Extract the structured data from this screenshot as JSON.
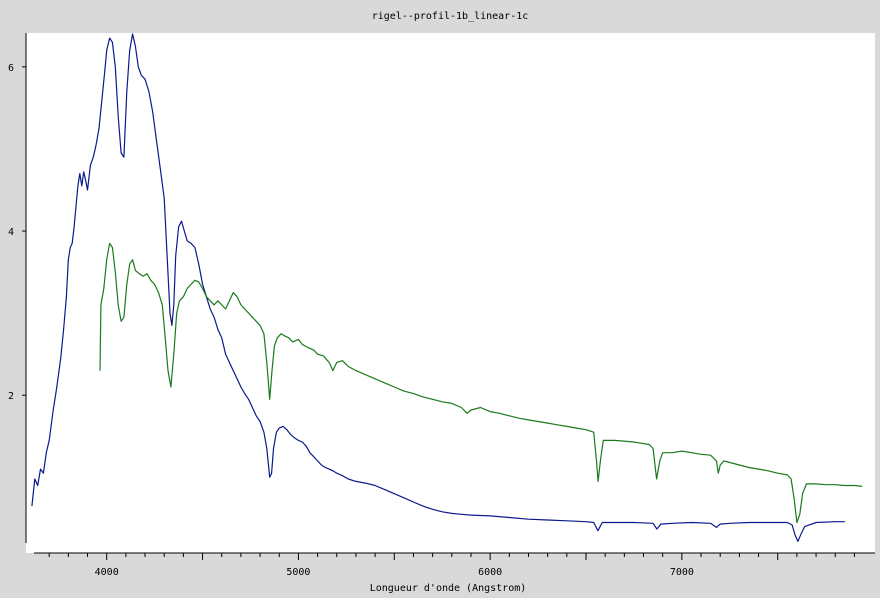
{
  "chart_data": {
    "type": "line",
    "title": "rigel--profil-1b_linear-1c",
    "xlabel": "Longueur d'onde (Angstrom)",
    "ylabel": "",
    "xlim": [
      3600,
      7950
    ],
    "ylim": [
      0.2,
      6.4
    ],
    "x_ticks": [
      4000,
      5000,
      6000,
      7000
    ],
    "x_tick_labels": [
      "4000",
      "5000",
      "6000",
      "7000"
    ],
    "y_ticks": [
      2,
      4,
      6
    ],
    "y_tick_labels": [
      "2",
      "4",
      "6"
    ],
    "grid": false,
    "legend": "none",
    "series": [
      {
        "color": "#0a1a8c",
        "points": [
          [
            3610,
            0.65
          ],
          [
            3625,
            0.98
          ],
          [
            3640,
            0.9
          ],
          [
            3655,
            1.1
          ],
          [
            3670,
            1.05
          ],
          [
            3685,
            1.3
          ],
          [
            3700,
            1.45
          ],
          [
            3720,
            1.8
          ],
          [
            3740,
            2.1
          ],
          [
            3760,
            2.45
          ],
          [
            3775,
            2.8
          ],
          [
            3790,
            3.2
          ],
          [
            3800,
            3.65
          ],
          [
            3810,
            3.8
          ],
          [
            3820,
            3.85
          ],
          [
            3830,
            4.05
          ],
          [
            3840,
            4.3
          ],
          [
            3850,
            4.55
          ],
          [
            3860,
            4.7
          ],
          [
            3870,
            4.55
          ],
          [
            3880,
            4.72
          ],
          [
            3890,
            4.62
          ],
          [
            3900,
            4.5
          ],
          [
            3915,
            4.8
          ],
          [
            3930,
            4.9
          ],
          [
            3945,
            5.05
          ],
          [
            3960,
            5.25
          ],
          [
            3975,
            5.6
          ],
          [
            3990,
            5.95
          ],
          [
            4000,
            6.2
          ],
          [
            4015,
            6.35
          ],
          [
            4030,
            6.3
          ],
          [
            4045,
            6.0
          ],
          [
            4060,
            5.4
          ],
          [
            4075,
            4.95
          ],
          [
            4090,
            4.9
          ],
          [
            4105,
            5.7
          ],
          [
            4120,
            6.2
          ],
          [
            4135,
            6.4
          ],
          [
            4150,
            6.25
          ],
          [
            4165,
            6.0
          ],
          [
            4180,
            5.9
          ],
          [
            4200,
            5.85
          ],
          [
            4220,
            5.7
          ],
          [
            4240,
            5.45
          ],
          [
            4260,
            5.1
          ],
          [
            4280,
            4.75
          ],
          [
            4300,
            4.4
          ],
          [
            4315,
            3.7
          ],
          [
            4330,
            3.0
          ],
          [
            4340,
            2.85
          ],
          [
            4350,
            3.1
          ],
          [
            4360,
            3.7
          ],
          [
            4375,
            4.05
          ],
          [
            4390,
            4.12
          ],
          [
            4405,
            4.0
          ],
          [
            4420,
            3.88
          ],
          [
            4440,
            3.85
          ],
          [
            4460,
            3.8
          ],
          [
            4480,
            3.6
          ],
          [
            4500,
            3.35
          ],
          [
            4520,
            3.2
          ],
          [
            4540,
            3.05
          ],
          [
            4560,
            2.95
          ],
          [
            4580,
            2.8
          ],
          [
            4600,
            2.7
          ],
          [
            4620,
            2.5
          ],
          [
            4640,
            2.4
          ],
          [
            4660,
            2.3
          ],
          [
            4680,
            2.2
          ],
          [
            4700,
            2.1
          ],
          [
            4720,
            2.02
          ],
          [
            4740,
            1.95
          ],
          [
            4760,
            1.85
          ],
          [
            4780,
            1.75
          ],
          [
            4800,
            1.68
          ],
          [
            4820,
            1.55
          ],
          [
            4835,
            1.35
          ],
          [
            4850,
            1.0
          ],
          [
            4860,
            1.05
          ],
          [
            4870,
            1.35
          ],
          [
            4885,
            1.55
          ],
          [
            4900,
            1.6
          ],
          [
            4920,
            1.62
          ],
          [
            4940,
            1.58
          ],
          [
            4960,
            1.52
          ],
          [
            4980,
            1.48
          ],
          [
            5000,
            1.45
          ],
          [
            5020,
            1.43
          ],
          [
            5040,
            1.38
          ],
          [
            5060,
            1.3
          ],
          [
            5080,
            1.25
          ],
          [
            5100,
            1.2
          ],
          [
            5120,
            1.15
          ],
          [
            5140,
            1.12
          ],
          [
            5160,
            1.1
          ],
          [
            5180,
            1.08
          ],
          [
            5200,
            1.05
          ],
          [
            5230,
            1.02
          ],
          [
            5260,
            0.98
          ],
          [
            5300,
            0.95
          ],
          [
            5350,
            0.93
          ],
          [
            5400,
            0.9
          ],
          [
            5450,
            0.85
          ],
          [
            5500,
            0.8
          ],
          [
            5550,
            0.75
          ],
          [
            5600,
            0.7
          ],
          [
            5650,
            0.65
          ],
          [
            5700,
            0.61
          ],
          [
            5750,
            0.58
          ],
          [
            5800,
            0.56
          ],
          [
            5850,
            0.55
          ],
          [
            5900,
            0.54
          ],
          [
            6000,
            0.53
          ],
          [
            6100,
            0.51
          ],
          [
            6200,
            0.49
          ],
          [
            6300,
            0.48
          ],
          [
            6400,
            0.47
          ],
          [
            6500,
            0.46
          ],
          [
            6540,
            0.45
          ],
          [
            6562,
            0.35
          ],
          [
            6585,
            0.45
          ],
          [
            6650,
            0.45
          ],
          [
            6750,
            0.45
          ],
          [
            6850,
            0.44
          ],
          [
            6870,
            0.37
          ],
          [
            6890,
            0.43
          ],
          [
            6950,
            0.44
          ],
          [
            7050,
            0.45
          ],
          [
            7150,
            0.44
          ],
          [
            7180,
            0.39
          ],
          [
            7200,
            0.43
          ],
          [
            7250,
            0.44
          ],
          [
            7350,
            0.45
          ],
          [
            7450,
            0.45
          ],
          [
            7550,
            0.45
          ],
          [
            7575,
            0.42
          ],
          [
            7590,
            0.3
          ],
          [
            7605,
            0.22
          ],
          [
            7620,
            0.3
          ],
          [
            7640,
            0.4
          ],
          [
            7700,
            0.45
          ],
          [
            7800,
            0.46
          ],
          [
            7850,
            0.46
          ]
        ]
      },
      {
        "color": "#1a7a1a",
        "points": [
          [
            3965,
            2.3
          ],
          [
            3970,
            3.1
          ],
          [
            3985,
            3.3
          ],
          [
            4000,
            3.65
          ],
          [
            4015,
            3.85
          ],
          [
            4030,
            3.8
          ],
          [
            4045,
            3.5
          ],
          [
            4060,
            3.1
          ],
          [
            4075,
            2.9
          ],
          [
            4090,
            2.95
          ],
          [
            4105,
            3.35
          ],
          [
            4120,
            3.6
          ],
          [
            4135,
            3.65
          ],
          [
            4150,
            3.52
          ],
          [
            4170,
            3.48
          ],
          [
            4190,
            3.45
          ],
          [
            4210,
            3.48
          ],
          [
            4230,
            3.4
          ],
          [
            4250,
            3.35
          ],
          [
            4270,
            3.25
          ],
          [
            4290,
            3.1
          ],
          [
            4305,
            2.7
          ],
          [
            4320,
            2.3
          ],
          [
            4335,
            2.1
          ],
          [
            4350,
            2.5
          ],
          [
            4365,
            3.0
          ],
          [
            4380,
            3.15
          ],
          [
            4400,
            3.2
          ],
          [
            4420,
            3.3
          ],
          [
            4440,
            3.35
          ],
          [
            4460,
            3.4
          ],
          [
            4480,
            3.38
          ],
          [
            4500,
            3.3
          ],
          [
            4520,
            3.2
          ],
          [
            4540,
            3.15
          ],
          [
            4560,
            3.1
          ],
          [
            4580,
            3.15
          ],
          [
            4600,
            3.1
          ],
          [
            4620,
            3.05
          ],
          [
            4640,
            3.15
          ],
          [
            4660,
            3.25
          ],
          [
            4680,
            3.2
          ],
          [
            4700,
            3.1
          ],
          [
            4720,
            3.05
          ],
          [
            4740,
            3.0
          ],
          [
            4760,
            2.95
          ],
          [
            4780,
            2.9
          ],
          [
            4800,
            2.85
          ],
          [
            4820,
            2.75
          ],
          [
            4835,
            2.4
          ],
          [
            4850,
            1.95
          ],
          [
            4862,
            2.3
          ],
          [
            4875,
            2.6
          ],
          [
            4890,
            2.7
          ],
          [
            4910,
            2.75
          ],
          [
            4930,
            2.72
          ],
          [
            4950,
            2.7
          ],
          [
            4970,
            2.65
          ],
          [
            5000,
            2.68
          ],
          [
            5020,
            2.62
          ],
          [
            5050,
            2.58
          ],
          [
            5080,
            2.55
          ],
          [
            5100,
            2.5
          ],
          [
            5130,
            2.48
          ],
          [
            5160,
            2.4
          ],
          [
            5180,
            2.3
          ],
          [
            5200,
            2.4
          ],
          [
            5230,
            2.42
          ],
          [
            5260,
            2.35
          ],
          [
            5300,
            2.3
          ],
          [
            5350,
            2.25
          ],
          [
            5400,
            2.2
          ],
          [
            5450,
            2.15
          ],
          [
            5500,
            2.1
          ],
          [
            5550,
            2.05
          ],
          [
            5600,
            2.02
          ],
          [
            5650,
            1.98
          ],
          [
            5700,
            1.95
          ],
          [
            5750,
            1.92
          ],
          [
            5800,
            1.9
          ],
          [
            5850,
            1.85
          ],
          [
            5880,
            1.78
          ],
          [
            5900,
            1.82
          ],
          [
            5950,
            1.85
          ],
          [
            6000,
            1.8
          ],
          [
            6050,
            1.78
          ],
          [
            6100,
            1.75
          ],
          [
            6150,
            1.72
          ],
          [
            6200,
            1.7
          ],
          [
            6250,
            1.68
          ],
          [
            6300,
            1.66
          ],
          [
            6350,
            1.64
          ],
          [
            6400,
            1.62
          ],
          [
            6450,
            1.6
          ],
          [
            6500,
            1.58
          ],
          [
            6540,
            1.55
          ],
          [
            6555,
            1.2
          ],
          [
            6563,
            0.95
          ],
          [
            6575,
            1.2
          ],
          [
            6590,
            1.45
          ],
          [
            6650,
            1.45
          ],
          [
            6750,
            1.43
          ],
          [
            6830,
            1.4
          ],
          [
            6850,
            1.35
          ],
          [
            6868,
            0.98
          ],
          [
            6885,
            1.2
          ],
          [
            6900,
            1.3
          ],
          [
            6950,
            1.3
          ],
          [
            7000,
            1.32
          ],
          [
            7050,
            1.3
          ],
          [
            7100,
            1.28
          ],
          [
            7150,
            1.27
          ],
          [
            7180,
            1.2
          ],
          [
            7190,
            1.05
          ],
          [
            7200,
            1.15
          ],
          [
            7220,
            1.2
          ],
          [
            7250,
            1.18
          ],
          [
            7300,
            1.15
          ],
          [
            7350,
            1.12
          ],
          [
            7400,
            1.1
          ],
          [
            7450,
            1.08
          ],
          [
            7500,
            1.05
          ],
          [
            7550,
            1.03
          ],
          [
            7570,
            0.98
          ],
          [
            7585,
            0.75
          ],
          [
            7600,
            0.45
          ],
          [
            7615,
            0.55
          ],
          [
            7630,
            0.8
          ],
          [
            7650,
            0.92
          ],
          [
            7700,
            0.92
          ],
          [
            7750,
            0.91
          ],
          [
            7800,
            0.91
          ],
          [
            7850,
            0.9
          ],
          [
            7900,
            0.9
          ],
          [
            7940,
            0.89
          ]
        ]
      }
    ]
  }
}
